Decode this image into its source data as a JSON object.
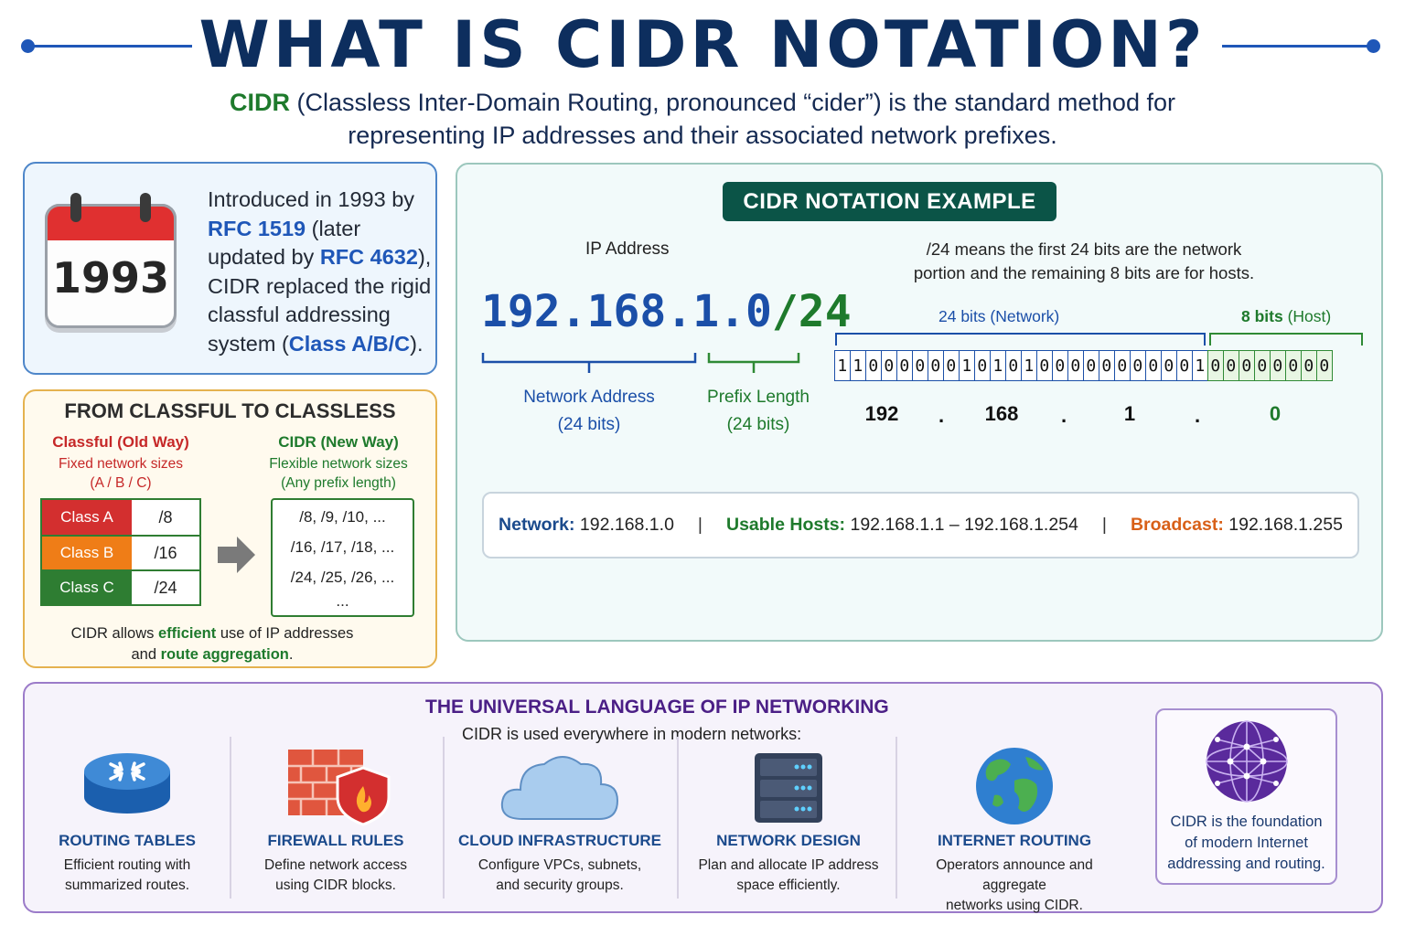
{
  "header": {
    "title": "WHAT IS CIDR NOTATION?",
    "intro": {
      "term": "CIDR",
      "rest_line1": "(Classless Inter-Domain Routing, pronounced “cider”) is the standard method for",
      "line2": "representing IP addresses and their associated network prefixes."
    }
  },
  "history": {
    "calendar_year": "1993",
    "text": {
      "t1": "Introduced in 1993 by",
      "rfc1": "RFC 1519",
      "t2": "(later updated by",
      "rfc2": "RFC 4632",
      "t3": "), CIDR replaced the rigid classful addressing system (",
      "classes": "Class A/B/C",
      "t4": ")."
    }
  },
  "classful": {
    "title": "FROM CLASSFUL TO CLASSLESS",
    "old": {
      "heading": "Classful (Old Way)",
      "sub1": "Fixed network sizes",
      "sub2": "(A / B / C)"
    },
    "new": {
      "heading": "CIDR (New Way)",
      "sub1": "Flexible network sizes",
      "sub2": "(Any prefix length)"
    },
    "classes": [
      {
        "name": "Class A",
        "prefix": "/8",
        "color": "#d32f2f"
      },
      {
        "name": "Class B",
        "prefix": "/16",
        "color": "#ef7d17"
      },
      {
        "name": "Class C",
        "prefix": "/24",
        "color": "#2e7d32"
      }
    ],
    "prefix_list": [
      "/8, /9, /10, ...",
      "/16, /17, /18, ...",
      "/24, /25, /26, ...",
      "..."
    ],
    "footer": {
      "p1": "CIDR allows",
      "h1": "efficient",
      "p2": "use of IP addresses",
      "p3": "and",
      "h2": "route aggregation",
      "p4": "."
    }
  },
  "example": {
    "badge": "CIDR NOTATION EXAMPLE",
    "ip_label": "IP Address",
    "ip_address": "192.168.1.0",
    "prefix": "/24",
    "network_label": {
      "l1": "Network Address",
      "l2": "(24 bits)"
    },
    "prefix_label": {
      "l1": "Prefix Length",
      "l2": "(24 bits)"
    },
    "description": {
      "l1": "/24 means the first 24 bits are the network",
      "l2": "portion and the remaining 8 bits are for hosts."
    },
    "network_bits_label": "24 bits (Network)",
    "host_bits_strong": "8 bits",
    "host_bits_rest": "(Host)",
    "bits": [
      1,
      1,
      0,
      0,
      0,
      0,
      0,
      0,
      1,
      0,
      1,
      0,
      1,
      0,
      0,
      0,
      0,
      0,
      0,
      0,
      0,
      0,
      0,
      1,
      0,
      0,
      0,
      0,
      0,
      0,
      0,
      0
    ],
    "network_bit_count": 24,
    "octets": [
      "192",
      "168",
      "1",
      "0"
    ],
    "dot_glyph": ".",
    "summary": {
      "network_label": "Network:",
      "network_value": "192.168.1.0",
      "hosts_label": "Usable Hosts:",
      "hosts_value": "192.168.1.1 – 192.168.1.254",
      "broadcast_label": "Broadcast:",
      "broadcast_value": "192.168.1.255",
      "separator": "|"
    }
  },
  "universal": {
    "title": "THE UNIVERSAL LANGUAGE OF IP NETWORKING",
    "subtitle": "CIDR is used everywhere in modern networks:",
    "items": [
      {
        "icon": "router-icon",
        "title": "ROUTING TABLES",
        "d1": "Efficient routing with",
        "d2": "summarized routes."
      },
      {
        "icon": "firewall-icon",
        "title": "FIREWALL RULES",
        "d1": "Define network access",
        "d2": "using CIDR blocks."
      },
      {
        "icon": "cloud-icon",
        "title": "CLOUD INFRASTRUCTURE",
        "d1": "Configure VPCs, subnets,",
        "d2": "and security groups."
      },
      {
        "icon": "server-rack-icon",
        "title": "NETWORK DESIGN",
        "d1": "Plan and allocate IP address",
        "d2": "space efficiently."
      },
      {
        "icon": "globe-icon",
        "title": "INTERNET ROUTING",
        "d1": "Operators announce and aggregate",
        "d2": "networks using CIDR."
      }
    ],
    "foundation": {
      "icon": "network-globe-icon",
      "l1": "CIDR is the foundation",
      "l2": "of modern Internet",
      "l3": "addressing and routing."
    }
  },
  "colors": {
    "title_navy": "#0d2e5e",
    "accent_blue": "#1f57b8",
    "accent_green": "#1e7a2c",
    "accent_red": "#c62828",
    "accent_orange": "#d86018",
    "accent_purple": "#4b1f86",
    "badge_teal": "#0b5447"
  }
}
